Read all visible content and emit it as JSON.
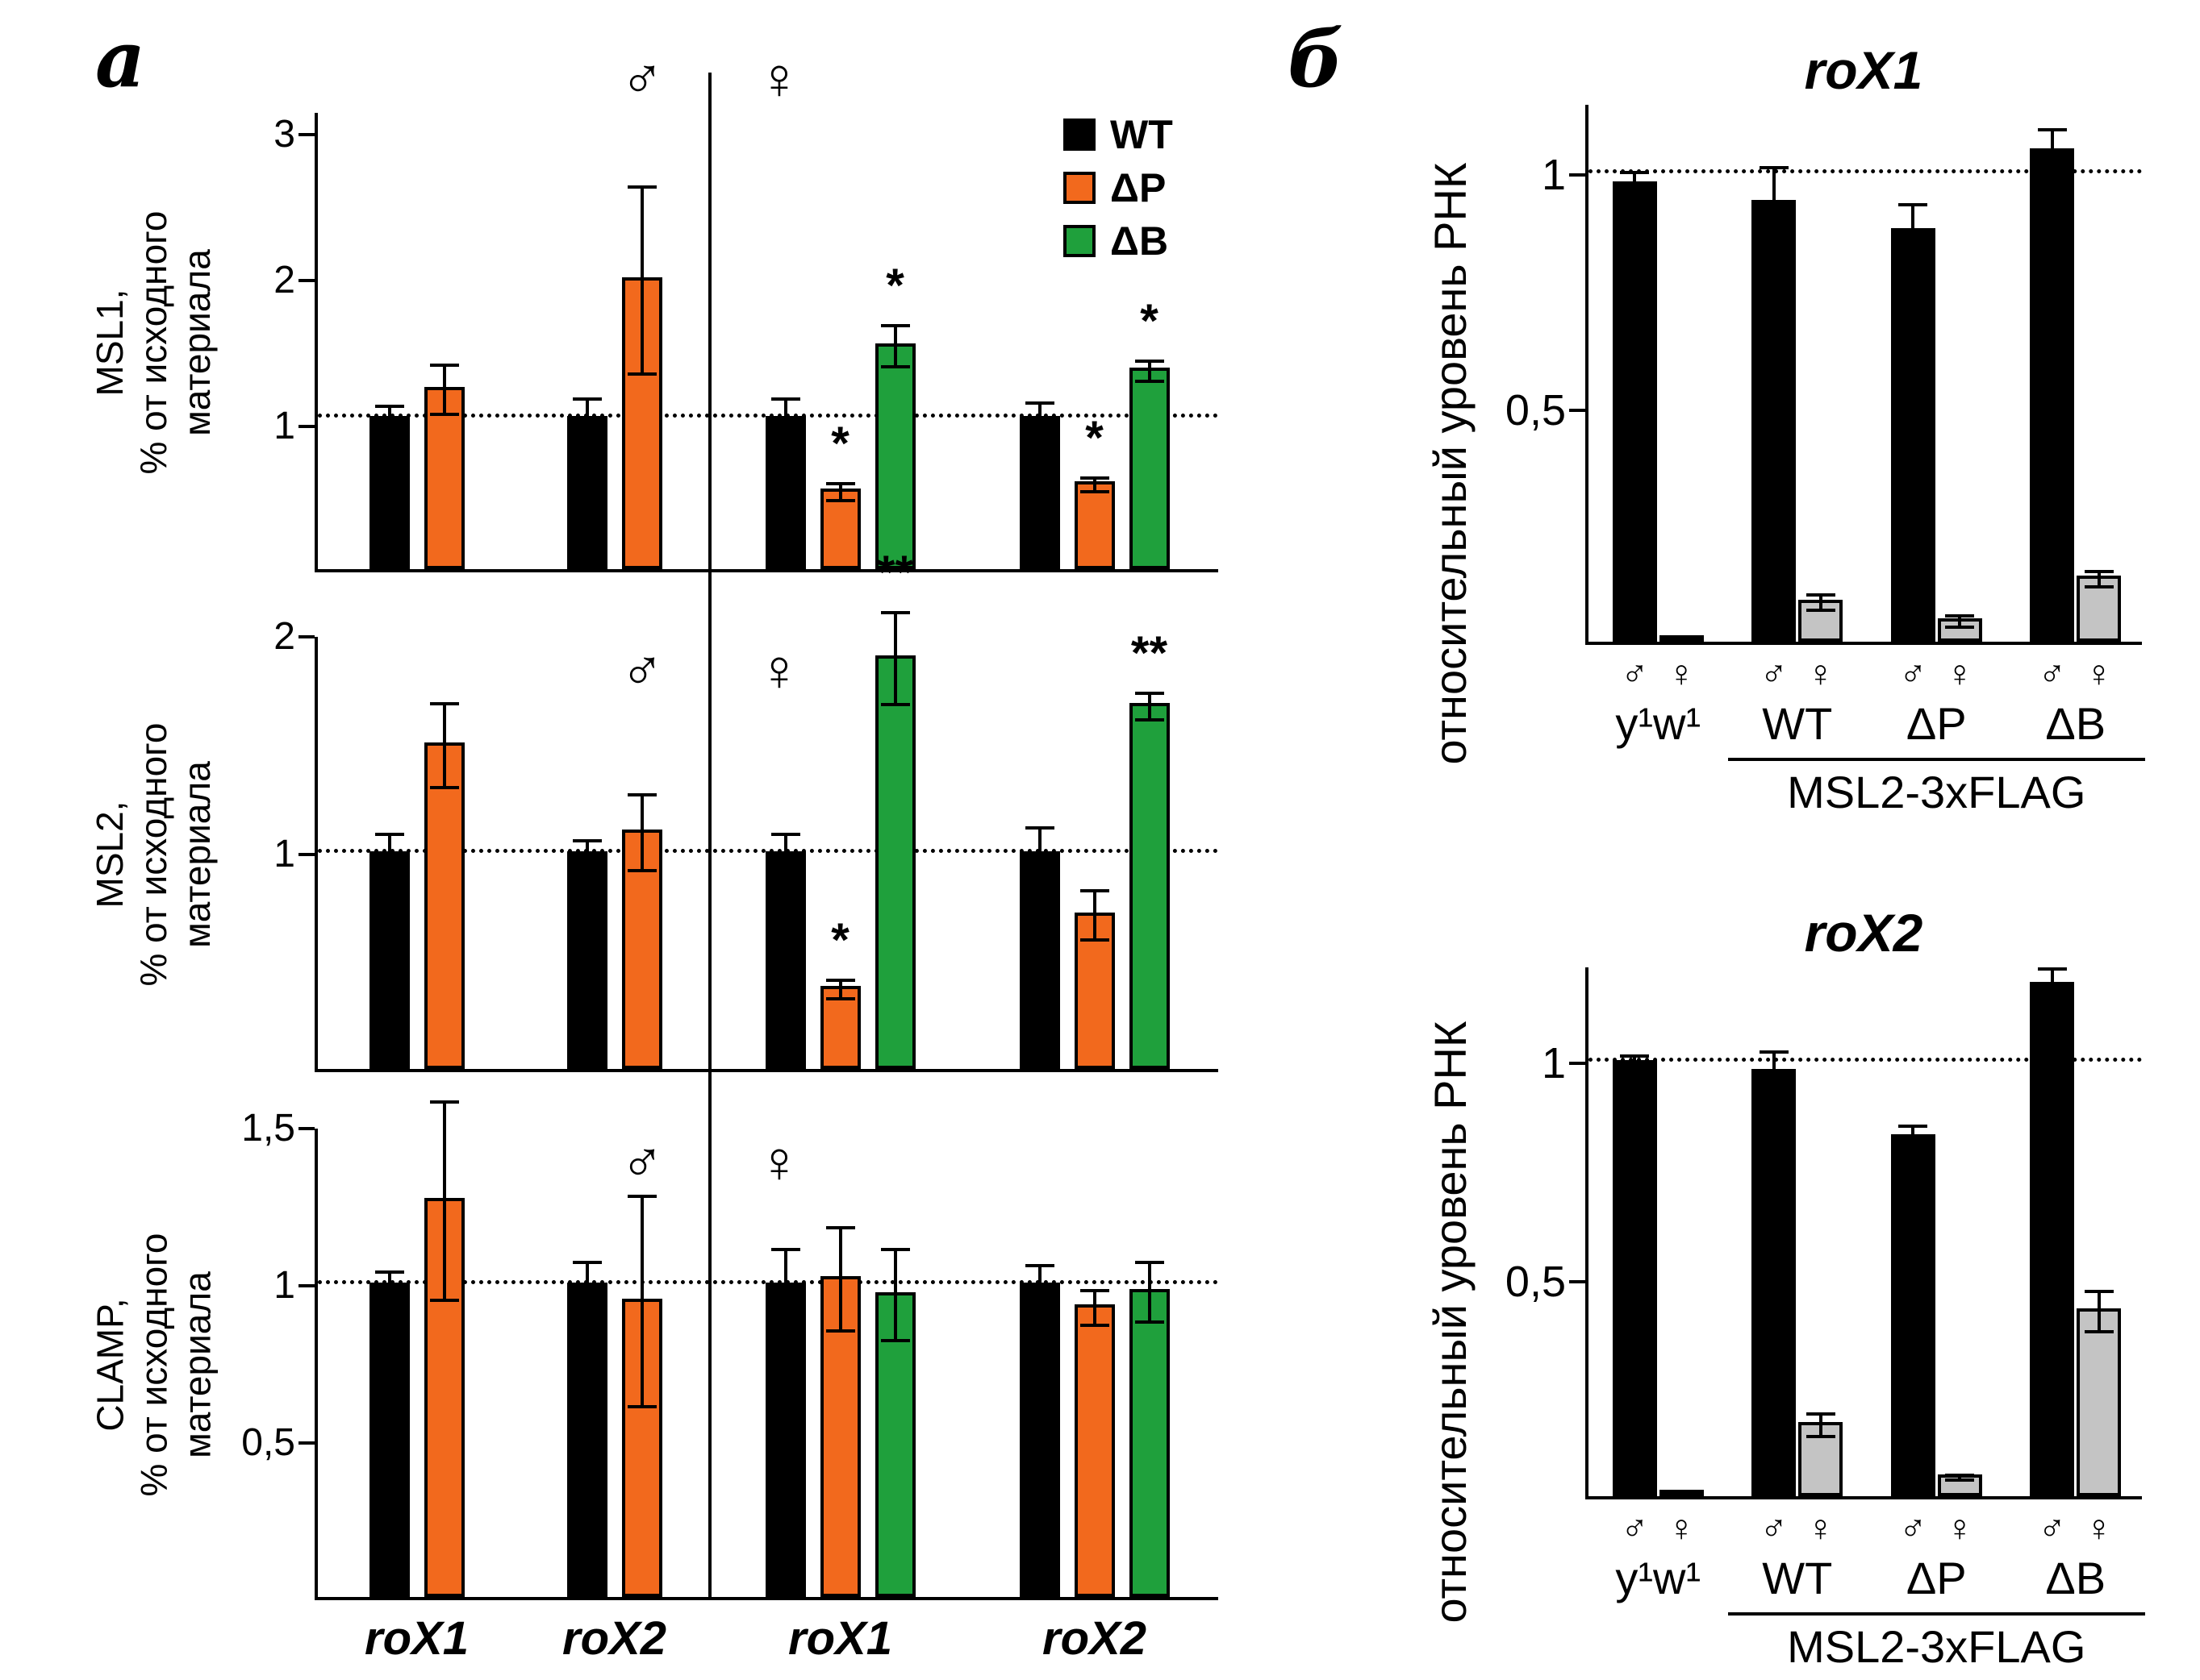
{
  "panels": {
    "a": {
      "label": "а"
    },
    "b": {
      "label": "б"
    }
  },
  "colors": {
    "WT": "#000000",
    "dP": "#f2691d",
    "dB": "#1fa03c",
    "male": "#000000",
    "female": "#c4c4c4"
  },
  "legend": {
    "position": "top-right-of-panel-a",
    "items": [
      {
        "key": "WT",
        "label": "WT"
      },
      {
        "key": "dP",
        "label": "ΔP"
      },
      {
        "key": "dB",
        "label": "ΔB"
      }
    ]
  },
  "chart_data": [
    {
      "id": "msl1",
      "panel": "a",
      "type": "bar",
      "ylabel_lines": [
        "MSL1,",
        "% от исходного",
        "материала"
      ],
      "ymax": 3.15,
      "ticks": [
        {
          "v": 1,
          "label": "1"
        },
        {
          "v": 2,
          "label": "2"
        },
        {
          "v": 3,
          "label": "3"
        }
      ],
      "dotted_line": 1.05,
      "grid": false,
      "sections": [
        {
          "name": "male",
          "symbol": "♂"
        },
        {
          "name": "female",
          "symbol": "♀"
        }
      ],
      "groups": [
        {
          "section": 0,
          "label": "roX1",
          "bars": [
            {
              "series": "WT",
              "value": 1.05,
              "err": 0.1
            },
            {
              "series": "dP",
              "value": 1.25,
              "err": 0.18
            }
          ]
        },
        {
          "section": 0,
          "label": "roX2",
          "bars": [
            {
              "series": "WT",
              "value": 1.05,
              "err": 0.15
            },
            {
              "series": "dP",
              "value": 2.0,
              "err": 0.65
            }
          ]
        },
        {
          "section": 1,
          "label": "roX1",
          "bars": [
            {
              "series": "WT",
              "value": 1.05,
              "err": 0.15
            },
            {
              "series": "dP",
              "value": 0.55,
              "err": 0.07,
              "sig": "*"
            },
            {
              "series": "dB",
              "value": 1.55,
              "err": 0.15,
              "sig": "*"
            }
          ]
        },
        {
          "section": 1,
          "label": "roX2",
          "bars": [
            {
              "series": "WT",
              "value": 1.05,
              "err": 0.12
            },
            {
              "series": "dP",
              "value": 0.6,
              "err": 0.06,
              "sig": "*"
            },
            {
              "series": "dB",
              "value": 1.38,
              "err": 0.08,
              "sig": "*"
            }
          ]
        }
      ]
    },
    {
      "id": "msl2",
      "panel": "a",
      "type": "bar",
      "ylabel_lines": [
        "MSL2,",
        "% от исходного",
        "материала"
      ],
      "ymax": 2.0,
      "ticks": [
        {
          "v": 1,
          "label": "1"
        },
        {
          "v": 2,
          "label": "2"
        }
      ],
      "dotted_line": 1.0,
      "grid": false,
      "sections": [
        {
          "name": "male",
          "symbol": "♂"
        },
        {
          "name": "female",
          "symbol": "♀"
        }
      ],
      "groups": [
        {
          "section": 0,
          "label": "roX1",
          "bars": [
            {
              "series": "WT",
              "value": 1.0,
              "err": 0.1
            },
            {
              "series": "dP",
              "value": 1.5,
              "err": 0.2
            }
          ]
        },
        {
          "section": 0,
          "label": "roX2",
          "bars": [
            {
              "series": "WT",
              "value": 1.0,
              "err": 0.07
            },
            {
              "series": "dP",
              "value": 1.1,
              "err": 0.18
            }
          ]
        },
        {
          "section": 1,
          "label": "roX1",
          "bars": [
            {
              "series": "WT",
              "value": 1.0,
              "err": 0.1
            },
            {
              "series": "dP",
              "value": 0.38,
              "err": 0.05,
              "sig": "*"
            },
            {
              "series": "dB",
              "value": 1.9,
              "err": 0.22,
              "sig": "**"
            }
          ]
        },
        {
          "section": 1,
          "label": "roX2",
          "bars": [
            {
              "series": "WT",
              "value": 1.0,
              "err": 0.13
            },
            {
              "series": "dP",
              "value": 0.72,
              "err": 0.12
            },
            {
              "series": "dB",
              "value": 1.68,
              "err": 0.07,
              "sig": "**"
            }
          ]
        }
      ]
    },
    {
      "id": "clamp",
      "panel": "a",
      "type": "bar",
      "ylabel_lines": [
        "CLAMP,",
        "% от исходного",
        "материала"
      ],
      "ymax": 1.5,
      "ticks": [
        {
          "v": 0.5,
          "label": "0,5"
        },
        {
          "v": 1,
          "label": "1"
        },
        {
          "v": 1.5,
          "label": "1,5"
        }
      ],
      "dotted_line": 1.0,
      "grid": false,
      "sections": [
        {
          "name": "male",
          "symbol": "♂"
        },
        {
          "name": "female",
          "symbol": "♀"
        }
      ],
      "groups": [
        {
          "section": 0,
          "label": "roX1",
          "bars": [
            {
              "series": "WT",
              "value": 1.0,
              "err": 0.05
            },
            {
              "series": "dP",
              "value": 1.27,
              "err": 0.32
            }
          ]
        },
        {
          "section": 0,
          "label": "roX2",
          "bars": [
            {
              "series": "WT",
              "value": 1.0,
              "err": 0.08
            },
            {
              "series": "dP",
              "value": 0.95,
              "err": 0.34
            }
          ]
        },
        {
          "section": 1,
          "label": "roX1",
          "bars": [
            {
              "series": "WT",
              "value": 1.0,
              "err": 0.12
            },
            {
              "series": "dP",
              "value": 1.02,
              "err": 0.17
            },
            {
              "series": "dB",
              "value": 0.97,
              "err": 0.15
            }
          ]
        },
        {
          "section": 1,
          "label": "roX2",
          "bars": [
            {
              "series": "WT",
              "value": 1.0,
              "err": 0.07
            },
            {
              "series": "dP",
              "value": 0.93,
              "err": 0.06
            },
            {
              "series": "dB",
              "value": 0.98,
              "err": 0.1
            }
          ]
        }
      ]
    },
    {
      "id": "rox1",
      "panel": "b",
      "type": "bar",
      "title": "roX1",
      "ylabel": "относительный уровень РНК",
      "ymax": 1.15,
      "ticks": [
        {
          "v": 0.5,
          "label": "0,5"
        },
        {
          "v": 1,
          "label": "1"
        }
      ],
      "dotted_line": 1.0,
      "grid": false,
      "pair_symbols": [
        "♂",
        "♀"
      ],
      "groups": [
        {
          "label": "y¹w¹",
          "bars": [
            {
              "series": "male",
              "value": 0.98,
              "err": 0.03
            },
            {
              "series": "female",
              "value": 0.012
            }
          ]
        },
        {
          "label": "WT",
          "bars": [
            {
              "series": "male",
              "value": 0.94,
              "err": 0.08
            },
            {
              "series": "female",
              "value": 0.09,
              "err": 0.02
            }
          ]
        },
        {
          "label": "ΔP",
          "bars": [
            {
              "series": "male",
              "value": 0.88,
              "err": 0.06
            },
            {
              "series": "female",
              "value": 0.05,
              "err": 0.015
            }
          ]
        },
        {
          "label": "ΔB",
          "bars": [
            {
              "series": "male",
              "value": 1.05,
              "err": 0.05
            },
            {
              "series": "female",
              "value": 0.14,
              "err": 0.02
            }
          ]
        }
      ],
      "bracket": {
        "from": 1,
        "to": 3,
        "label": "MSL2-3xFLAG"
      }
    },
    {
      "id": "rox2",
      "panel": "b",
      "type": "bar",
      "title": "roX2",
      "ylabel": "относительный уровень РНК",
      "ymax": 1.22,
      "ticks": [
        {
          "v": 0.5,
          "label": "0,5"
        },
        {
          "v": 1,
          "label": "1"
        }
      ],
      "dotted_line": 1.0,
      "grid": false,
      "pair_symbols": [
        "♂",
        "♀"
      ],
      "groups": [
        {
          "label": "y¹w¹",
          "bars": [
            {
              "series": "male",
              "value": 1.0,
              "err": 0.02
            },
            {
              "series": "female",
              "value": 0.012
            }
          ]
        },
        {
          "label": "WT",
          "bars": [
            {
              "series": "male",
              "value": 0.98,
              "err": 0.05
            },
            {
              "series": "female",
              "value": 0.17,
              "err": 0.03
            }
          ]
        },
        {
          "label": "ΔP",
          "bars": [
            {
              "series": "male",
              "value": 0.83,
              "err": 0.03
            },
            {
              "series": "female",
              "value": 0.05,
              "err": 0.01
            }
          ]
        },
        {
          "label": "ΔB",
          "bars": [
            {
              "series": "male",
              "value": 1.18,
              "err": 0.04
            },
            {
              "series": "female",
              "value": 0.43,
              "err": 0.05
            }
          ]
        }
      ],
      "bracket": {
        "from": 1,
        "to": 3,
        "label": "MSL2-3xFLAG"
      }
    }
  ]
}
